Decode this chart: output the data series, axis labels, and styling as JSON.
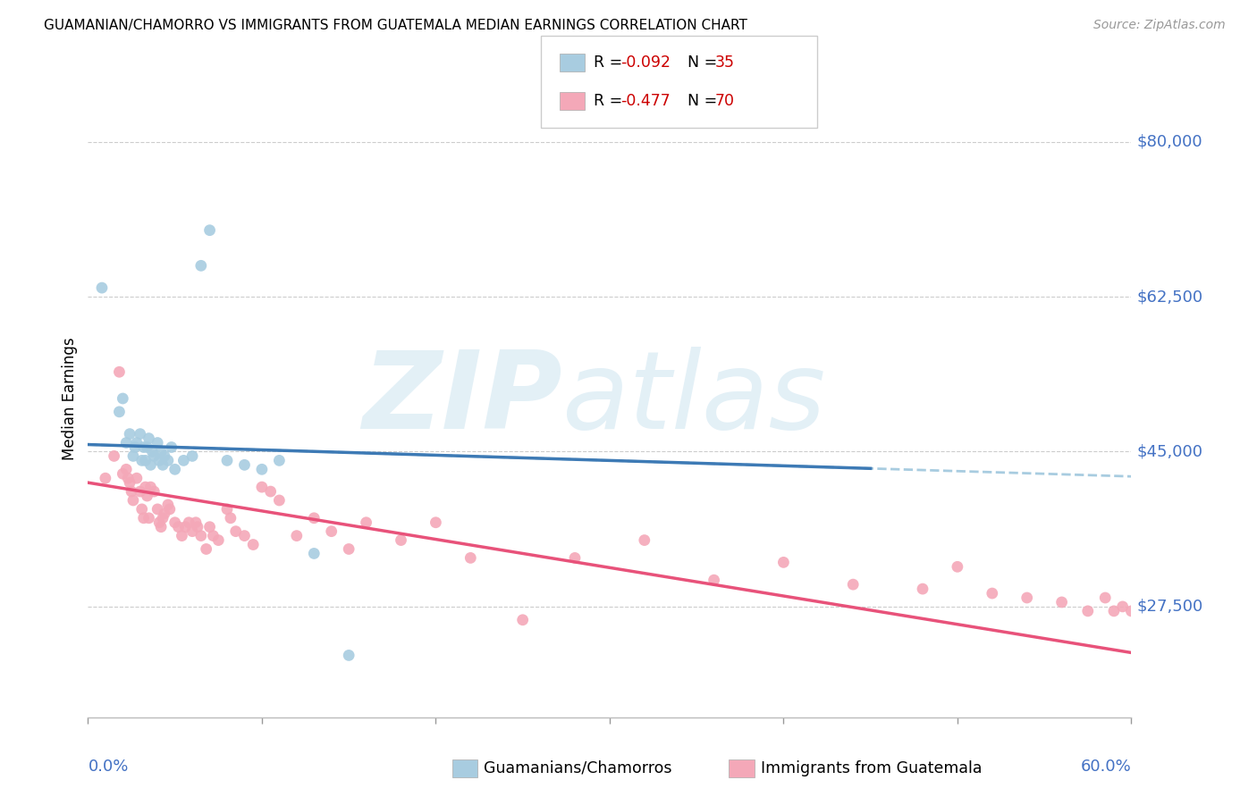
{
  "title": "GUAMANIAN/CHAMORRO VS IMMIGRANTS FROM GUATEMALA MEDIAN EARNINGS CORRELATION CHART",
  "source": "Source: ZipAtlas.com",
  "ylabel": "Median Earnings",
  "yticks": [
    27500,
    45000,
    62500,
    80000
  ],
  "ytick_labels": [
    "$27,500",
    "$45,000",
    "$62,500",
    "$80,000"
  ],
  "xlim": [
    0.0,
    0.6
  ],
  "ylim": [
    15000,
    87000
  ],
  "blue_color": "#a8cce0",
  "pink_color": "#f4a8b8",
  "blue_line_color": "#3d7ab5",
  "pink_line_color": "#e8527a",
  "blue_dash_color": "#a8cce0",
  "label_color": "#4472c4",
  "r_value_color": "#cc0000",
  "blue_scatter_x": [
    0.008,
    0.018,
    0.02,
    0.022,
    0.024,
    0.026,
    0.027,
    0.028,
    0.03,
    0.031,
    0.032,
    0.033,
    0.034,
    0.035,
    0.036,
    0.037,
    0.038,
    0.04,
    0.041,
    0.042,
    0.043,
    0.044,
    0.046,
    0.048,
    0.05,
    0.055,
    0.06,
    0.065,
    0.07,
    0.08,
    0.09,
    0.1,
    0.11,
    0.13,
    0.15
  ],
  "blue_scatter_y": [
    63500,
    49500,
    51000,
    46000,
    47000,
    44500,
    45500,
    46000,
    47000,
    44000,
    45500,
    44000,
    45500,
    46500,
    43500,
    45000,
    44500,
    46000,
    44000,
    45000,
    43500,
    44500,
    44000,
    45500,
    43000,
    44000,
    44500,
    66000,
    70000,
    44000,
    43500,
    43000,
    44000,
    33500,
    22000
  ],
  "pink_scatter_x": [
    0.01,
    0.015,
    0.018,
    0.02,
    0.022,
    0.023,
    0.024,
    0.025,
    0.026,
    0.028,
    0.03,
    0.031,
    0.032,
    0.033,
    0.034,
    0.035,
    0.036,
    0.038,
    0.04,
    0.041,
    0.042,
    0.043,
    0.044,
    0.046,
    0.047,
    0.05,
    0.052,
    0.054,
    0.056,
    0.058,
    0.06,
    0.062,
    0.063,
    0.065,
    0.068,
    0.07,
    0.072,
    0.075,
    0.08,
    0.082,
    0.085,
    0.09,
    0.095,
    0.1,
    0.105,
    0.11,
    0.12,
    0.13,
    0.14,
    0.15,
    0.16,
    0.18,
    0.2,
    0.22,
    0.25,
    0.28,
    0.32,
    0.36,
    0.4,
    0.44,
    0.48,
    0.5,
    0.52,
    0.54,
    0.56,
    0.575,
    0.585,
    0.59,
    0.595,
    0.6
  ],
  "pink_scatter_y": [
    42000,
    44500,
    54000,
    42500,
    43000,
    42000,
    41500,
    40500,
    39500,
    42000,
    40500,
    38500,
    37500,
    41000,
    40000,
    37500,
    41000,
    40500,
    38500,
    37000,
    36500,
    37500,
    38000,
    39000,
    38500,
    37000,
    36500,
    35500,
    36500,
    37000,
    36000,
    37000,
    36500,
    35500,
    34000,
    36500,
    35500,
    35000,
    38500,
    37500,
    36000,
    35500,
    34500,
    41000,
    40500,
    39500,
    35500,
    37500,
    36000,
    34000,
    37000,
    35000,
    37000,
    33000,
    26000,
    33000,
    35000,
    30500,
    32500,
    30000,
    29500,
    32000,
    29000,
    28500,
    28000,
    27000,
    28500,
    27000,
    27500,
    27000
  ]
}
